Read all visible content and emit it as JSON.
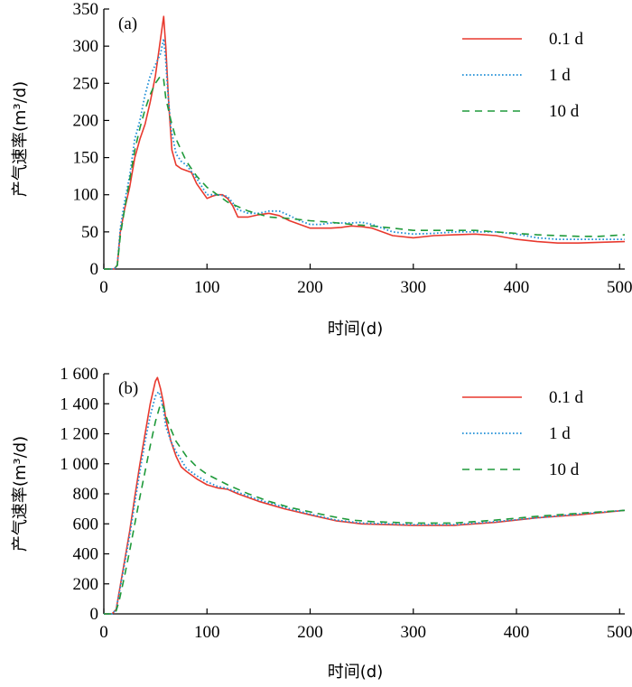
{
  "chart_data": [
    {
      "type": "line",
      "panel_label": "(a)",
      "xlabel": "时间(d)",
      "ylabel": "产气速率(m³/d)",
      "xlim": [
        0,
        505
      ],
      "ylim": [
        0,
        350
      ],
      "xticks": [
        0,
        100,
        200,
        300,
        400,
        500
      ],
      "xtick_labels": [
        "0",
        "100",
        "200",
        "300",
        "400",
        "500"
      ],
      "yticks": [
        0,
        50,
        100,
        150,
        200,
        250,
        300,
        350
      ],
      "ytick_labels": [
        "0",
        "50",
        "100",
        "150",
        "200",
        "250",
        "300",
        "350"
      ],
      "legend_position": "top-right",
      "grid": false,
      "series": [
        {
          "name": "0.1 d",
          "color": "#e8392e",
          "dash": "solid",
          "x": [
            0,
            10,
            13,
            16,
            20,
            25,
            30,
            35,
            40,
            45,
            50,
            54,
            57,
            58,
            59,
            60,
            63,
            66,
            70,
            75,
            85,
            90,
            100,
            105,
            110,
            115,
            120,
            125,
            130,
            140,
            150,
            160,
            170,
            180,
            190,
            200,
            210,
            220,
            230,
            240,
            250,
            260,
            270,
            280,
            300,
            320,
            340,
            360,
            380,
            400,
            420,
            440,
            460,
            480,
            505
          ],
          "y": [
            0,
            0,
            5,
            50,
            80,
            110,
            150,
            175,
            195,
            225,
            260,
            300,
            330,
            340,
            320,
            300,
            220,
            160,
            140,
            135,
            130,
            115,
            95,
            98,
            100,
            100,
            95,
            85,
            70,
            70,
            73,
            75,
            72,
            65,
            60,
            55,
            55,
            55,
            56,
            58,
            57,
            55,
            50,
            45,
            42,
            45,
            46,
            47,
            45,
            40,
            37,
            35,
            35,
            36,
            37
          ]
        },
        {
          "name": "1 d",
          "color": "#1f8fd6",
          "dash": "dotted",
          "x": [
            0,
            10,
            13,
            16,
            20,
            25,
            30,
            35,
            40,
            45,
            50,
            55,
            58,
            60,
            62,
            65,
            70,
            75,
            80,
            90,
            100,
            110,
            120,
            130,
            140,
            150,
            160,
            170,
            180,
            190,
            200,
            210,
            220,
            230,
            240,
            250,
            260,
            270,
            280,
            300,
            320,
            340,
            360,
            380,
            400,
            420,
            440,
            460,
            480,
            505
          ],
          "y": [
            0,
            0,
            5,
            55,
            90,
            125,
            175,
            200,
            235,
            260,
            275,
            290,
            310,
            280,
            240,
            190,
            155,
            145,
            140,
            122,
            100,
            100,
            98,
            80,
            75,
            75,
            78,
            78,
            72,
            65,
            60,
            60,
            62,
            62,
            62,
            63,
            60,
            55,
            50,
            47,
            48,
            50,
            50,
            50,
            47,
            42,
            40,
            40,
            40,
            40
          ]
        },
        {
          "name": "10 d",
          "color": "#1f9a3a",
          "dash": "dashed",
          "x": [
            0,
            10,
            13,
            16,
            20,
            25,
            30,
            35,
            40,
            45,
            50,
            55,
            58,
            60,
            65,
            70,
            80,
            90,
            100,
            120,
            140,
            160,
            180,
            200,
            220,
            240,
            260,
            280,
            300,
            320,
            340,
            360,
            380,
            400,
            420,
            440,
            460,
            480,
            505
          ],
          "y": [
            0,
            0,
            5,
            45,
            80,
            120,
            160,
            190,
            215,
            235,
            250,
            260,
            255,
            230,
            200,
            175,
            145,
            125,
            110,
            90,
            78,
            70,
            68,
            65,
            63,
            60,
            58,
            55,
            52,
            52,
            52,
            52,
            50,
            48,
            46,
            45,
            44,
            44,
            46
          ]
        }
      ]
    },
    {
      "type": "line",
      "panel_label": "(b)",
      "xlabel": "时间(d)",
      "ylabel": "产气速率(m³/d)",
      "xlim": [
        0,
        505
      ],
      "ylim": [
        0,
        1600
      ],
      "xticks": [
        0,
        100,
        200,
        300,
        400,
        500
      ],
      "xtick_labels": [
        "0",
        "100",
        "200",
        "300",
        "400",
        "500"
      ],
      "yticks": [
        0,
        200,
        400,
        600,
        800,
        1000,
        1200,
        1400,
        1600
      ],
      "ytick_labels": [
        "0",
        "200",
        "400",
        "600",
        "800",
        "1 000",
        "1 200",
        "1 400",
        "1 600"
      ],
      "legend_position": "top-right",
      "grid": false,
      "series": [
        {
          "name": "0.1 d",
          "color": "#e8392e",
          "dash": "solid",
          "x": [
            0,
            8,
            12,
            15,
            20,
            25,
            30,
            35,
            40,
            45,
            50,
            52,
            55,
            58,
            60,
            65,
            70,
            75,
            80,
            90,
            100,
            110,
            120,
            130,
            150,
            175,
            200,
            225,
            250,
            300,
            340,
            380,
            420,
            460,
            505
          ],
          "y": [
            0,
            0,
            30,
            150,
            350,
            550,
            780,
            1000,
            1200,
            1400,
            1550,
            1575,
            1500,
            1400,
            1300,
            1150,
            1050,
            980,
            950,
            900,
            860,
            840,
            830,
            800,
            750,
            700,
            660,
            620,
            600,
            590,
            590,
            610,
            640,
            660,
            690
          ]
        },
        {
          "name": "1 d",
          "color": "#1f8fd6",
          "dash": "dotted",
          "x": [
            0,
            8,
            12,
            15,
            20,
            25,
            30,
            35,
            40,
            45,
            50,
            53,
            55,
            58,
            60,
            65,
            70,
            80,
            90,
            100,
            110,
            120,
            130,
            150,
            175,
            200,
            225,
            250,
            300,
            340,
            380,
            420,
            460,
            505
          ],
          "y": [
            0,
            0,
            30,
            140,
            330,
            520,
            740,
            950,
            1150,
            1320,
            1450,
            1480,
            1450,
            1350,
            1250,
            1150,
            1080,
            970,
            920,
            880,
            850,
            835,
            810,
            760,
            710,
            665,
            625,
            605,
            595,
            595,
            615,
            640,
            665,
            690
          ]
        },
        {
          "name": "10 d",
          "color": "#1f9a3a",
          "dash": "dashed",
          "x": [
            0,
            8,
            12,
            15,
            20,
            25,
            30,
            35,
            40,
            45,
            50,
            55,
            58,
            60,
            65,
            70,
            80,
            90,
            100,
            120,
            140,
            160,
            180,
            200,
            220,
            240,
            260,
            280,
            300,
            340,
            380,
            420,
            460,
            505
          ],
          "y": [
            0,
            0,
            20,
            90,
            250,
            420,
            600,
            780,
            950,
            1120,
            1280,
            1400,
            1380,
            1320,
            1230,
            1150,
            1050,
            980,
            930,
            860,
            800,
            750,
            710,
            680,
            650,
            625,
            615,
            610,
            605,
            605,
            625,
            650,
            670,
            690
          ]
        }
      ]
    }
  ]
}
